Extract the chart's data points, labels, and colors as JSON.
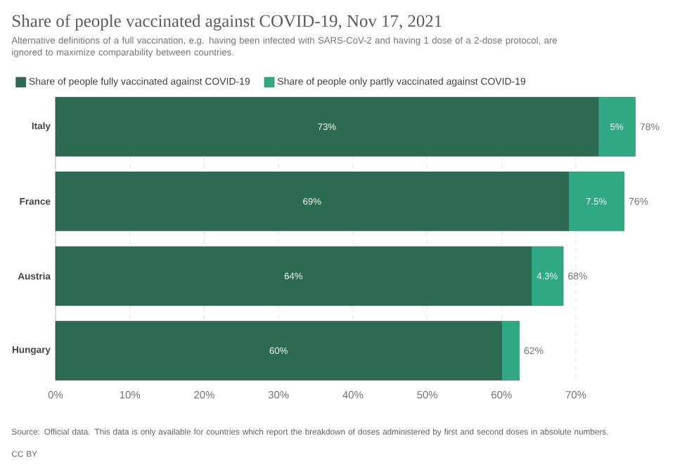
{
  "chart_data": {
    "type": "bar",
    "orientation": "horizontal",
    "stacked": true,
    "title": "Share of people vaccinated against COVID-19, Nov 17, 2021",
    "subtitle": "Alternative definitions of a full vaccination, e.g. having been infected with SARS-CoV-2 and having 1 dose of a 2-dose protocol, are ignored to maximize comparability between countries.",
    "categories": [
      "Italy",
      "France",
      "Austria",
      "Hungary"
    ],
    "series": [
      {
        "name": "Share of people fully vaccinated against COVID-19",
        "color": "#2c6a51",
        "values": [
          73,
          69,
          64,
          60
        ],
        "value_labels": [
          "73%",
          "69%",
          "64%",
          "60%"
        ]
      },
      {
        "name": "Share of people only partly vaccinated against COVID-19",
        "color": "#30a883",
        "values": [
          5,
          7.5,
          4.3,
          2.4
        ],
        "value_labels": [
          "5%",
          "7.5%",
          "4.3%",
          null
        ]
      }
    ],
    "totals": [
      "78%",
      "76%",
      "68%",
      "62%"
    ],
    "xlim": [
      0,
      78
    ],
    "xticks": [
      {
        "value": 0,
        "label": "0%"
      },
      {
        "value": 10,
        "label": "10%"
      },
      {
        "value": 20,
        "label": "20%"
      },
      {
        "value": 30,
        "label": "30%"
      },
      {
        "value": 40,
        "label": "40%"
      },
      {
        "value": 50,
        "label": "50%"
      },
      {
        "value": 60,
        "label": "60%"
      },
      {
        "value": 70,
        "label": "70%"
      }
    ],
    "grid": "x",
    "legend": "top",
    "annotations": [
      "Source: Official data. This data is only available for countries which report the breakdown of doses administered by first and second doses in absolute numbers.",
      "CC BY"
    ]
  }
}
